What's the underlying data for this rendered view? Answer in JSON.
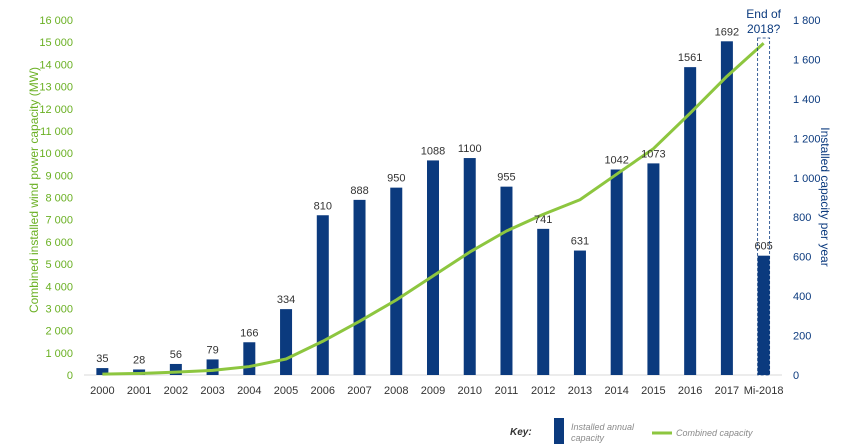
{
  "chart_data": {
    "type": "bar",
    "categories": [
      "2000",
      "2001",
      "2002",
      "2003",
      "2004",
      "2005",
      "2006",
      "2007",
      "2008",
      "2009",
      "2010",
      "2011",
      "2012",
      "2013",
      "2014",
      "2015",
      "2016",
      "2017",
      "Mi-2018"
    ],
    "series": [
      {
        "name": "Installed annual capacity",
        "type": "bar",
        "axis": "right",
        "values": [
          35,
          28,
          56,
          79,
          166,
          334,
          810,
          888,
          950,
          1088,
          1100,
          955,
          741,
          631,
          1042,
          1073,
          1561,
          1692,
          605
        ]
      },
      {
        "name": "Combined capacity",
        "type": "line",
        "axis": "left",
        "values": [
          40,
          70,
          130,
          210,
          380,
          720,
          1520,
          2420,
          3380,
          4460,
          5540,
          6490,
          7240,
          7900,
          9050,
          10200,
          11800,
          13460,
          14950
        ]
      }
    ],
    "y_left": {
      "label": "Combined installed wind power capacity (MW)",
      "range": [
        0,
        16000
      ],
      "ticks": [
        "0",
        "1 000",
        "2 000",
        "3 000",
        "4 000",
        "5 000",
        "6 000",
        "7 000",
        "8 000",
        "9 000",
        "10 000",
        "11 000",
        "12 000",
        "13 000",
        "14 000",
        "15 000",
        "16 000"
      ]
    },
    "y_right": {
      "label": "Installed capacity per year",
      "range": [
        0,
        1800
      ],
      "ticks": [
        "0",
        "200",
        "400",
        "600",
        "800",
        "1 000",
        "1 200",
        "1 400",
        "1 600",
        "1 800"
      ]
    },
    "annotation": "End of 2018?",
    "key": {
      "title": "Key:",
      "bar_label": "Installed annual capacity",
      "line_label": "Combined capacity"
    },
    "colors": {
      "bar": "#0b3a7e",
      "line": "#8dc63f",
      "left_axis": "#6ab023",
      "right_axis": "#0b3a7e"
    }
  }
}
